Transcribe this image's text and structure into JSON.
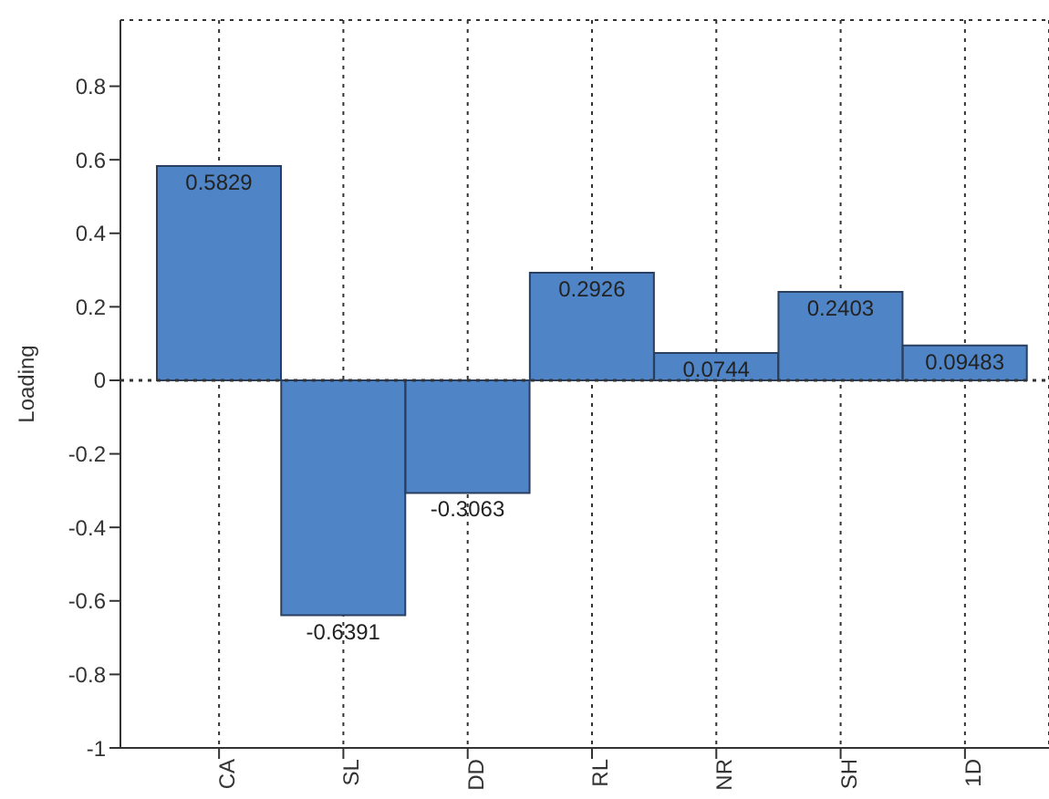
{
  "chart_data": {
    "type": "bar",
    "ylabel": "Loading",
    "categories": [
      "CA",
      "SL",
      "DD",
      "RL",
      "NR",
      "SH",
      "1D"
    ],
    "values": [
      0.5829,
      -0.6391,
      -0.3063,
      0.2926,
      0.0744,
      0.2403,
      0.09483
    ],
    "color": "#4f85c6",
    "ylim": [
      -1,
      0.98
    ],
    "yticks": [
      -1,
      -0.8,
      -0.6,
      -0.4,
      -0.2,
      0,
      0.2,
      0.4,
      0.6,
      0.8
    ],
    "grid": "x",
    "data_labels": true,
    "ref_lines": [
      {
        "axis": "y",
        "value": 0,
        "line_style": "dotted",
        "color": "#333333"
      }
    ]
  }
}
